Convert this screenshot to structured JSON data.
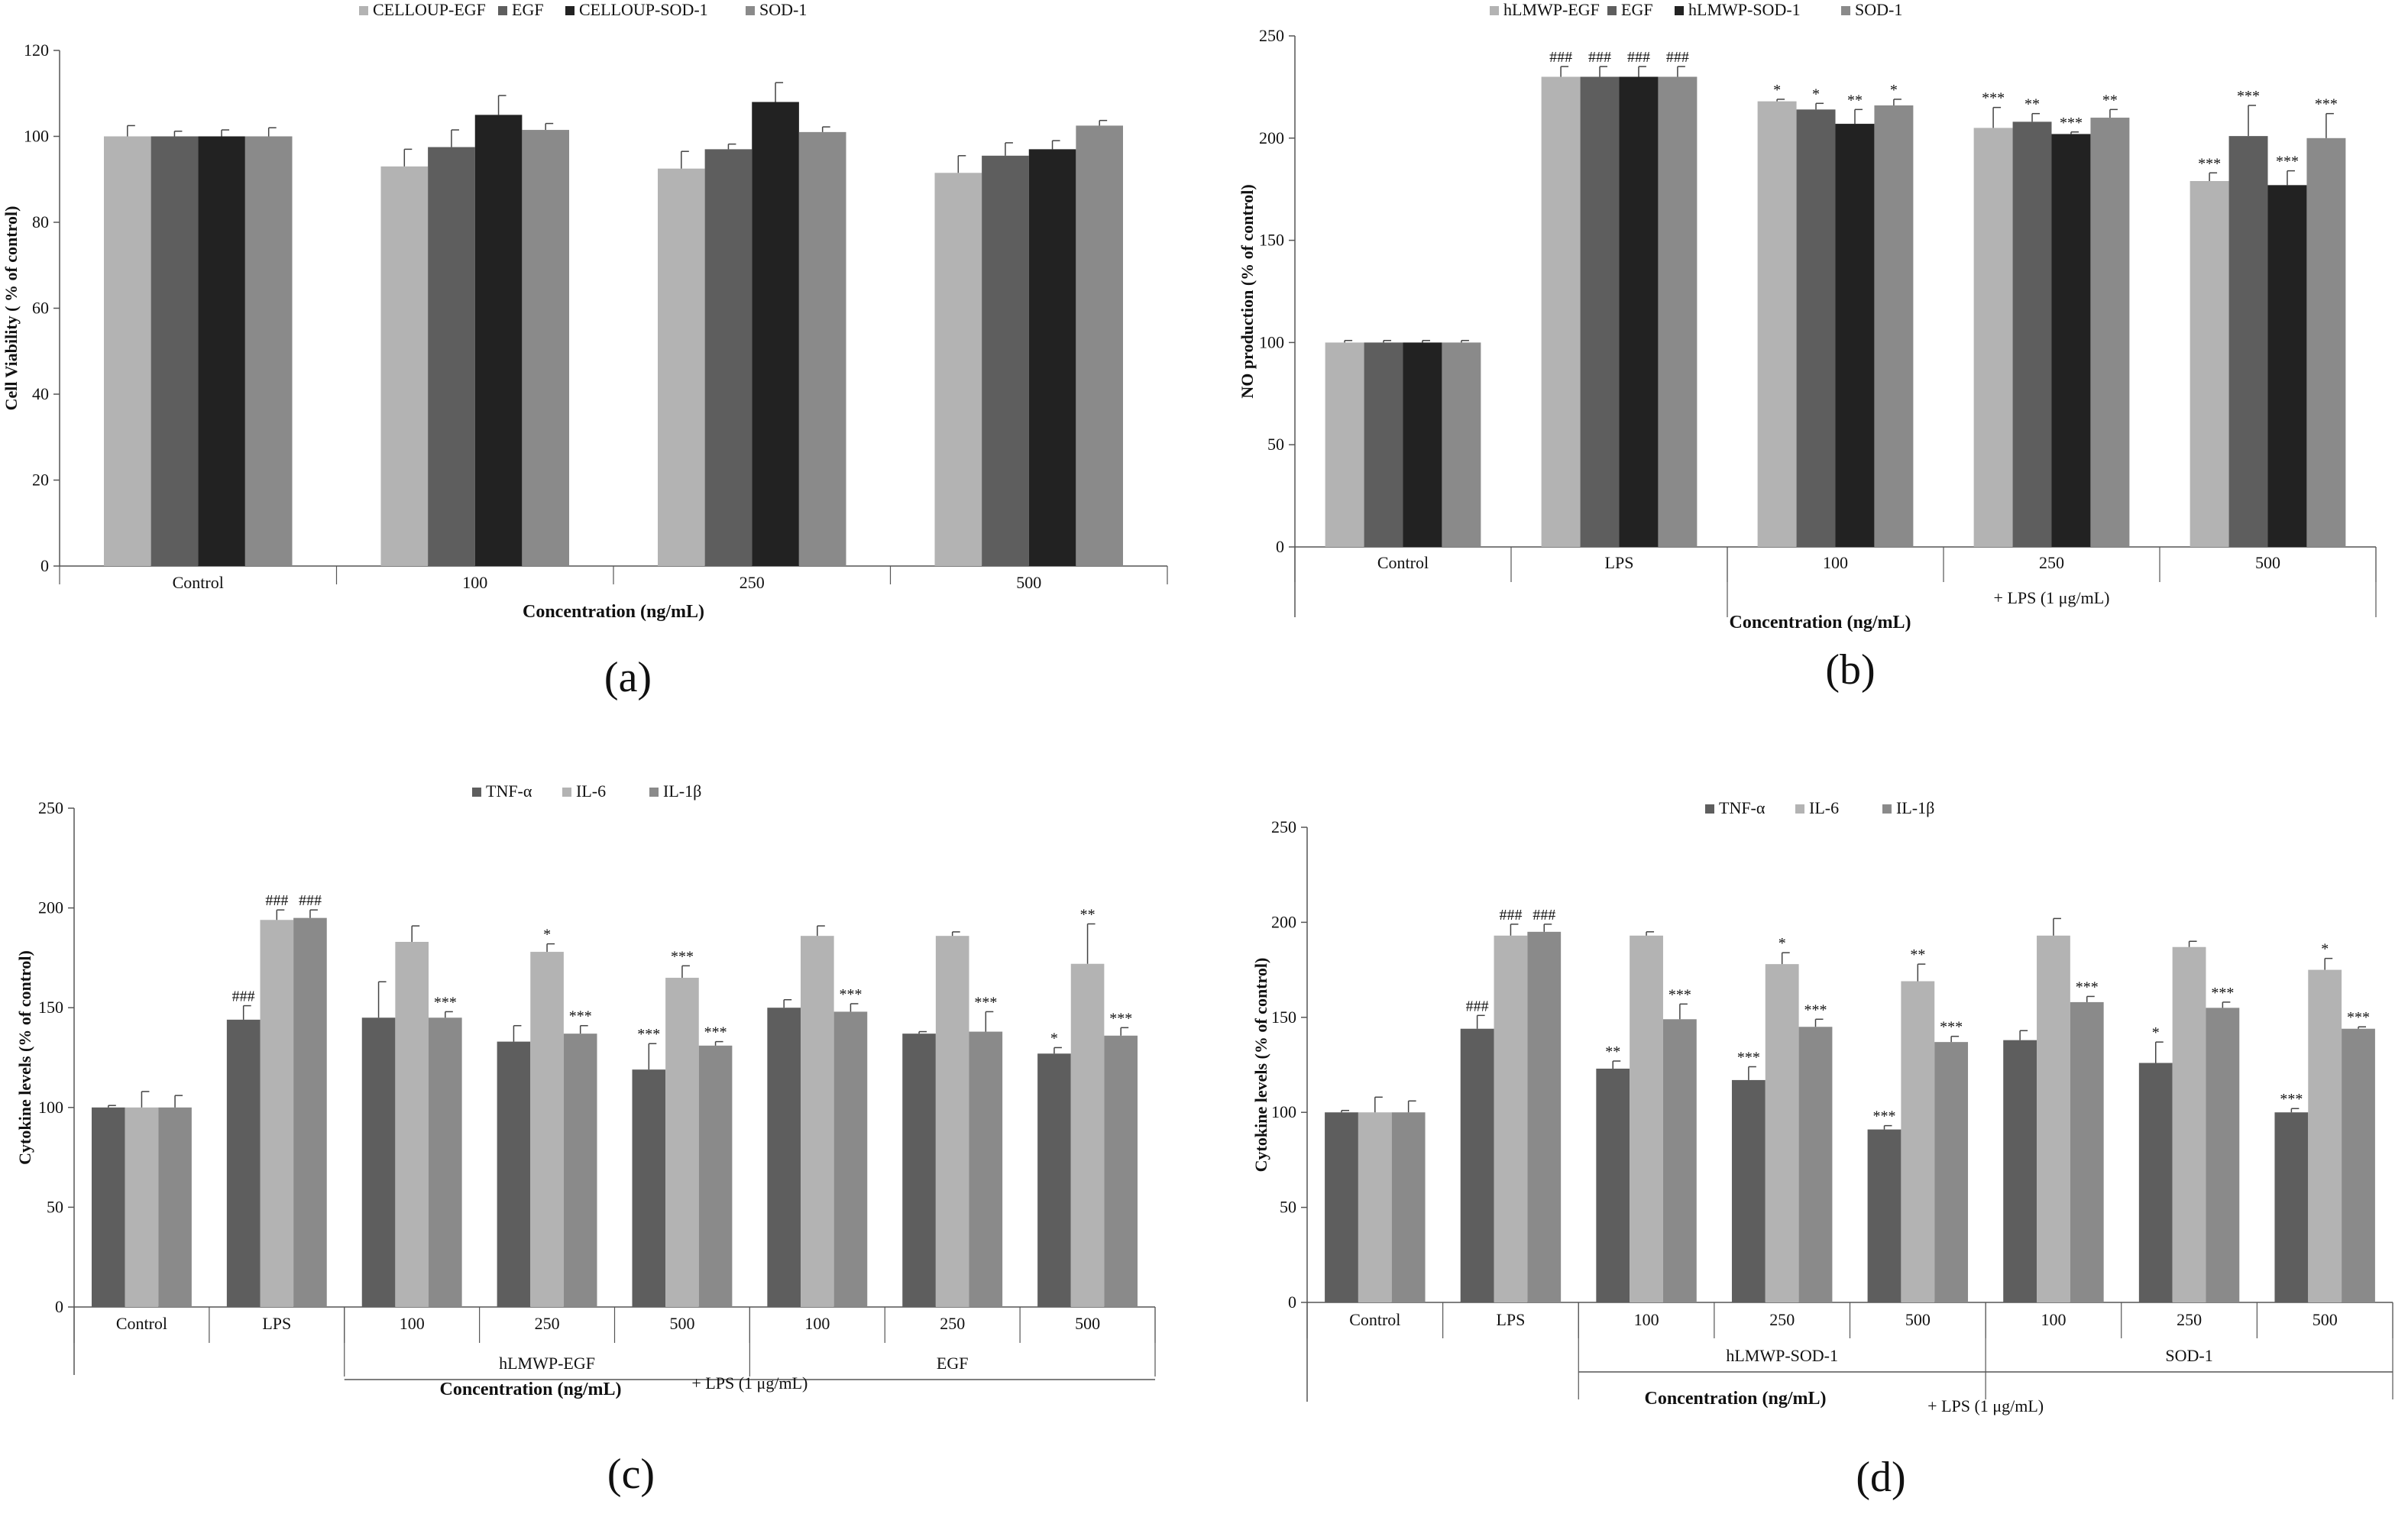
{
  "chart_data": [
    {
      "type": "bar",
      "panel_label": "(a)",
      "ylabel": "Cell Viability ( % of control)",
      "xlabel": "Concentration (ng/mL)",
      "ylim": [
        0,
        120
      ],
      "yticks": [
        0,
        20,
        40,
        60,
        80,
        100,
        120
      ],
      "legend_position": "top",
      "categories": [
        "Control",
        "100",
        "250",
        "500"
      ],
      "series": [
        {
          "name": "CELLOUP-EGF",
          "color": "#b3b3b3",
          "values": [
            100,
            93,
            92.5,
            91.5
          ],
          "errors": [
            2.5,
            4,
            4,
            4
          ],
          "sig": [
            "",
            "",
            "",
            ""
          ]
        },
        {
          "name": "EGF",
          "color": "#5e5e5e",
          "values": [
            100,
            97.5,
            97,
            95.5
          ],
          "errors": [
            1.2,
            4,
            1.2,
            3
          ],
          "sig": [
            "",
            "",
            "",
            ""
          ]
        },
        {
          "name": "CELLOUP-SOD-1",
          "color": "#222222",
          "values": [
            100,
            105,
            108,
            97
          ],
          "errors": [
            1.5,
            4.5,
            4.5,
            2
          ],
          "sig": [
            "",
            "",
            "",
            ""
          ]
        },
        {
          "name": "SOD-1",
          "color": "#8a8a8a",
          "values": [
            100,
            101.5,
            101,
            102.5
          ],
          "errors": [
            2,
            1.5,
            1.2,
            1.2
          ],
          "sig": [
            "",
            "",
            "",
            ""
          ]
        }
      ]
    },
    {
      "type": "bar",
      "panel_label": "(b)",
      "ylabel": "NO production (% of control)",
      "xlabel": "Concentration  (ng/mL)",
      "ylim": [
        0,
        250
      ],
      "yticks": [
        0,
        50,
        100,
        150,
        200,
        250
      ],
      "legend_position": "top",
      "categories": [
        "Control",
        "LPS",
        "100",
        "250",
        "500"
      ],
      "group_labels": [
        {
          "label": "+ LPS (1 μg/mL)",
          "from": 2,
          "to": 4
        }
      ],
      "series": [
        {
          "name": "hLMWP-EGF",
          "color": "#b3b3b3",
          "values": [
            100,
            230,
            218,
            205,
            179
          ],
          "errors": [
            1,
            5,
            1,
            10,
            4
          ],
          "sig": [
            "",
            "###",
            "*",
            "***",
            "***"
          ]
        },
        {
          "name": "EGF",
          "color": "#5e5e5e",
          "values": [
            100,
            230,
            214,
            208,
            201
          ],
          "errors": [
            1,
            5,
            3,
            4,
            15
          ],
          "sig": [
            "",
            "###",
            "*",
            "**",
            "***"
          ]
        },
        {
          "name": "hLMWP-SOD-1",
          "color": "#222222",
          "values": [
            100,
            230,
            207,
            202,
            177
          ],
          "errors": [
            1,
            5,
            7,
            1,
            7
          ],
          "sig": [
            "",
            "###",
            "**",
            "***",
            "***"
          ]
        },
        {
          "name": "SOD-1",
          "color": "#8a8a8a",
          "values": [
            100,
            230,
            216,
            210,
            200
          ],
          "errors": [
            1,
            5,
            3,
            4,
            12
          ],
          "sig": [
            "",
            "###",
            "*",
            "**",
            "***"
          ]
        }
      ]
    },
    {
      "type": "bar",
      "panel_label": "(c)",
      "ylabel": "Cytokine levels (% of control)",
      "xlabel": "Concentration (ng/mL)",
      "ylim": [
        0,
        250
      ],
      "yticks": [
        0,
        50,
        100,
        150,
        200,
        250
      ],
      "legend_position": "top",
      "categories": [
        "Control",
        "LPS",
        "100",
        "250",
        "500",
        "100",
        "250",
        "500"
      ],
      "group_labels": [
        {
          "label": "hLMWP-EGF",
          "from": 2,
          "to": 4
        },
        {
          "label": "EGF",
          "from": 5,
          "to": 7
        }
      ],
      "outer_label": "+ LPS (1 μg/mL)",
      "series": [
        {
          "name": "TNF-α",
          "color": "#5e5e5e",
          "values": [
            100,
            144,
            145,
            133,
            119,
            150,
            137,
            127
          ],
          "errors": [
            1,
            7,
            18,
            8,
            13,
            4,
            1,
            3
          ],
          "sig": [
            "",
            "###",
            "",
            "",
            "***",
            "",
            "",
            "*"
          ]
        },
        {
          "name": "IL-6",
          "color": "#b3b3b3",
          "values": [
            100,
            194,
            183,
            178,
            165,
            186,
            186,
            172
          ],
          "errors": [
            8,
            5,
            8,
            4,
            6,
            5,
            2,
            20
          ],
          "sig": [
            "",
            "###",
            "",
            "*",
            "***",
            "",
            "",
            "**"
          ]
        },
        {
          "name": "IL-1β",
          "color": "#8a8a8a",
          "values": [
            100,
            195,
            145,
            137,
            131,
            148,
            138,
            136
          ],
          "errors": [
            6,
            4,
            3,
            4,
            2,
            4,
            10,
            4
          ],
          "sig": [
            "",
            "###",
            "***",
            "***",
            "***",
            "***",
            "***",
            "***"
          ]
        }
      ]
    },
    {
      "type": "bar",
      "panel_label": "(d)",
      "ylabel": "Cytokine levels (% of control)",
      "xlabel": "Concentration (ng/mL)",
      "ylim": [
        0,
        250
      ],
      "yticks": [
        0,
        50,
        100,
        150,
        200,
        250
      ],
      "legend_position": "top",
      "categories": [
        "Control",
        "LPS",
        "100",
        "250",
        "500",
        "100",
        "250",
        "500"
      ],
      "group_labels": [
        {
          "label": "hLMWP-SOD-1",
          "from": 2,
          "to": 4
        },
        {
          "label": "SOD-1",
          "from": 5,
          "to": 7
        }
      ],
      "outer_label": "+ LPS (1 μg/mL)",
      "series": [
        {
          "name": "TNF-α",
          "color": "#5e5e5e",
          "values": [
            100,
            144,
            123,
            117,
            91,
            138,
            126,
            100
          ],
          "errors": [
            1,
            7,
            4,
            7,
            2,
            5,
            11,
            2
          ],
          "sig": [
            "",
            "###",
            "**",
            "***",
            "***",
            "",
            "*",
            "***"
          ]
        },
        {
          "name": "IL-6",
          "color": "#b3b3b3",
          "values": [
            100,
            193,
            193,
            178,
            169,
            193,
            187,
            175
          ],
          "errors": [
            8,
            6,
            2,
            6,
            9,
            9,
            3,
            6
          ],
          "sig": [
            "",
            "###",
            "",
            "*",
            "**",
            "",
            "",
            "*"
          ]
        },
        {
          "name": "IL-1β",
          "color": "#8a8a8a",
          "values": [
            100,
            195,
            149,
            145,
            137,
            158,
            155,
            144
          ],
          "errors": [
            6,
            4,
            8,
            4,
            3,
            3,
            3,
            1
          ],
          "sig": [
            "",
            "###",
            "***",
            "***",
            "***",
            "***",
            "***",
            "***"
          ]
        }
      ]
    }
  ]
}
